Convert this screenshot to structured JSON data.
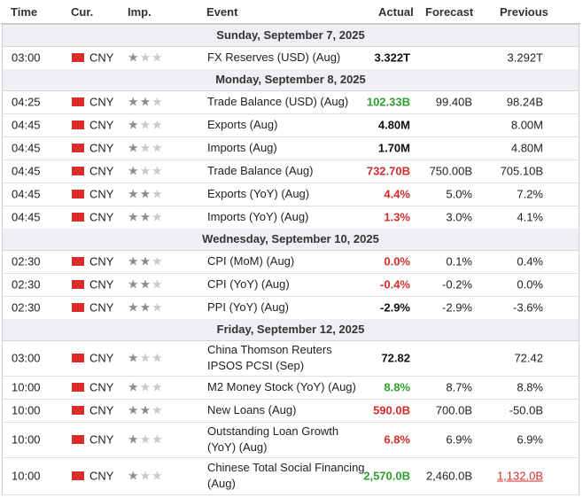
{
  "headers": {
    "time": "Time",
    "cur": "Cur.",
    "imp": "Imp.",
    "event": "Event",
    "actual": "Actual",
    "forecast": "Forecast",
    "previous": "Previous"
  },
  "groups": [
    {
      "date": "Sunday, September 7, 2025",
      "rows": [
        {
          "time": "03:00",
          "cur": "CNY",
          "imp": 1,
          "event": "FX Reserves (USD) (Aug)",
          "actual": "3.322T",
          "actual_status": "neutral",
          "forecast": "",
          "previous": "3.292T",
          "previous_status": "neutral"
        }
      ]
    },
    {
      "date": "Monday, September 8, 2025",
      "rows": [
        {
          "time": "04:25",
          "cur": "CNY",
          "imp": 2,
          "event": "Trade Balance (USD) (Aug)",
          "actual": "102.33B",
          "actual_status": "positive",
          "forecast": "99.40B",
          "previous": "98.24B",
          "previous_status": "neutral"
        },
        {
          "time": "04:45",
          "cur": "CNY",
          "imp": 1,
          "event": "Exports (Aug)",
          "actual": "4.80M",
          "actual_status": "neutral",
          "forecast": "",
          "previous": "8.00M",
          "previous_status": "neutral"
        },
        {
          "time": "04:45",
          "cur": "CNY",
          "imp": 1,
          "event": "Imports (Aug)",
          "actual": "1.70M",
          "actual_status": "neutral",
          "forecast": "",
          "previous": "4.80M",
          "previous_status": "neutral"
        },
        {
          "time": "04:45",
          "cur": "CNY",
          "imp": 1,
          "event": "Trade Balance (Aug)",
          "actual": "732.70B",
          "actual_status": "negative",
          "forecast": "750.00B",
          "previous": "705.10B",
          "previous_status": "neutral"
        },
        {
          "time": "04:45",
          "cur": "CNY",
          "imp": 2,
          "event": "Exports (YoY) (Aug)",
          "actual": "4.4%",
          "actual_status": "negative",
          "forecast": "5.0%",
          "previous": "7.2%",
          "previous_status": "neutral"
        },
        {
          "time": "04:45",
          "cur": "CNY",
          "imp": 2,
          "event": "Imports (YoY) (Aug)",
          "actual": "1.3%",
          "actual_status": "negative",
          "forecast": "3.0%",
          "previous": "4.1%",
          "previous_status": "neutral"
        }
      ]
    },
    {
      "date": "Wednesday, September 10, 2025",
      "rows": [
        {
          "time": "02:30",
          "cur": "CNY",
          "imp": 2,
          "event": "CPI (MoM) (Aug)",
          "actual": "0.0%",
          "actual_status": "negative",
          "forecast": "0.1%",
          "previous": "0.4%",
          "previous_status": "neutral"
        },
        {
          "time": "02:30",
          "cur": "CNY",
          "imp": 2,
          "event": "CPI (YoY) (Aug)",
          "actual": "-0.4%",
          "actual_status": "negative",
          "forecast": "-0.2%",
          "previous": "0.0%",
          "previous_status": "neutral"
        },
        {
          "time": "02:30",
          "cur": "CNY",
          "imp": 2,
          "event": "PPI (YoY) (Aug)",
          "actual": "-2.9%",
          "actual_status": "neutral",
          "forecast": "-2.9%",
          "previous": "-3.6%",
          "previous_status": "neutral"
        }
      ]
    },
    {
      "date": "Friday, September 12, 2025",
      "rows": [
        {
          "time": "03:00",
          "cur": "CNY",
          "imp": 1,
          "event": "China Thomson Reuters IPSOS PCSI (Sep)",
          "actual": "72.82",
          "actual_status": "neutral",
          "forecast": "",
          "previous": "72.42",
          "previous_status": "neutral"
        },
        {
          "time": "10:00",
          "cur": "CNY",
          "imp": 1,
          "event": "M2 Money Stock (YoY) (Aug)",
          "actual": "8.8%",
          "actual_status": "positive",
          "forecast": "8.7%",
          "previous": "8.8%",
          "previous_status": "neutral"
        },
        {
          "time": "10:00",
          "cur": "CNY",
          "imp": 2,
          "event": "New Loans (Aug)",
          "actual": "590.0B",
          "actual_status": "negative",
          "forecast": "700.0B",
          "previous": "-50.0B",
          "previous_status": "neutral"
        },
        {
          "time": "10:00",
          "cur": "CNY",
          "imp": 1,
          "event": "Outstanding Loan Growth (YoY) (Aug)",
          "actual": "6.8%",
          "actual_status": "negative",
          "forecast": "6.9%",
          "previous": "6.9%",
          "previous_status": "neutral"
        },
        {
          "time": "10:00",
          "cur": "CNY",
          "imp": 1,
          "event": "Chinese Total Social Financing (Aug)",
          "actual": "2,570.0B",
          "actual_status": "positive",
          "forecast": "2,460.0B",
          "previous": "1,132.0B",
          "previous_status": "revised"
        }
      ]
    }
  ],
  "colors": {
    "positive": "#2e9e2e",
    "negative": "#d22c2c",
    "flag": "#dd2c2c"
  },
  "icons": {
    "flag": "china-flag-icon",
    "star": "star-icon"
  }
}
